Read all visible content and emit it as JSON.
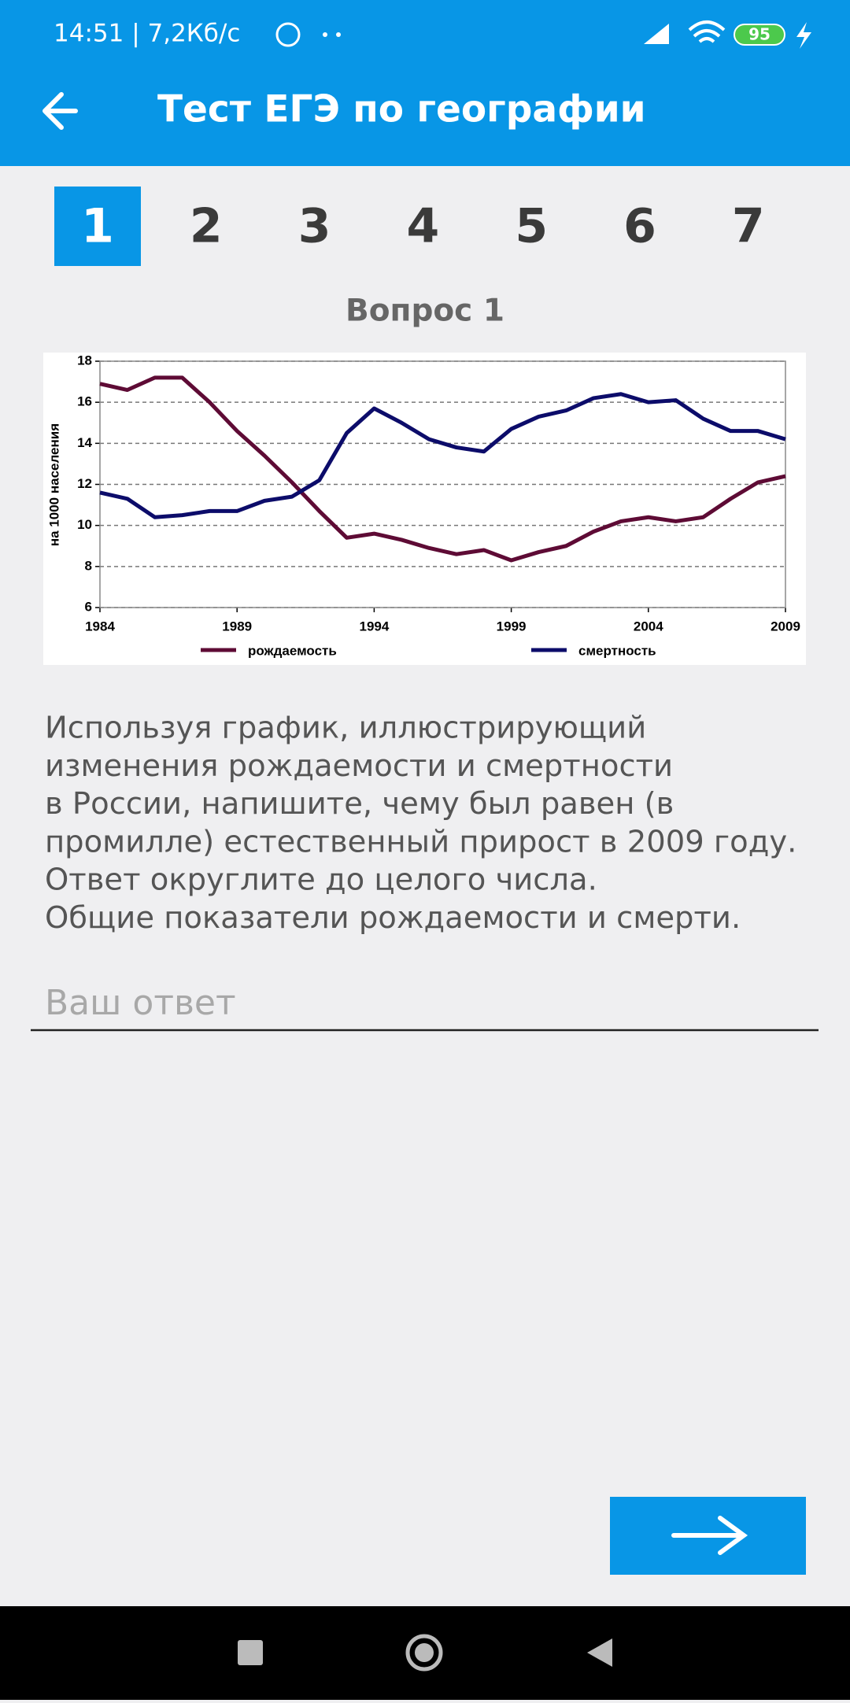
{
  "status": {
    "time": "14:51 | 7,2Кб/с",
    "battery": "95"
  },
  "header": {
    "title": "Тест ЕГЭ по географии"
  },
  "tabs": [
    "1",
    "2",
    "3",
    "4",
    "5",
    "6",
    "7"
  ],
  "question": {
    "heading": "Вопрос 1",
    "chart": {
      "type": "line",
      "ylabel": "на 1000 населения",
      "x": [
        1984,
        1985,
        1986,
        1987,
        1988,
        1989,
        1990,
        1991,
        1992,
        1993,
        1994,
        1995,
        1996,
        1997,
        1998,
        1999,
        2000,
        2001,
        2002,
        2003,
        2004,
        2005,
        2006,
        2007,
        2008,
        2009
      ],
      "series": [
        {
          "name": "рождаемость",
          "color": "#5e0b35",
          "values": [
            16.9,
            16.6,
            17.2,
            17.2,
            16.0,
            14.6,
            13.4,
            12.1,
            10.7,
            9.4,
            9.6,
            9.3,
            8.9,
            8.6,
            8.8,
            8.3,
            8.7,
            9.0,
            9.7,
            10.2,
            10.4,
            10.2,
            10.4,
            11.3,
            12.1,
            12.4
          ]
        },
        {
          "name": "смертность",
          "color": "#0c0c6a",
          "values": [
            11.6,
            11.3,
            10.4,
            10.5,
            10.7,
            10.7,
            11.2,
            11.4,
            12.2,
            14.5,
            15.7,
            15.0,
            14.2,
            13.8,
            13.6,
            14.7,
            15.3,
            15.6,
            16.2,
            16.4,
            16.0,
            16.1,
            15.2,
            14.6,
            14.6,
            14.2
          ]
        }
      ],
      "xlim": [
        1984,
        2009
      ],
      "xticks": [
        1984,
        1989,
        1994,
        1999,
        2004,
        2009
      ],
      "ylim": [
        6,
        18
      ],
      "yticks": [
        6,
        8,
        10,
        12,
        14,
        16,
        18
      ],
      "grid": true
    },
    "text_lines": [
      "Используя график, иллюстрирующий",
      "изменения рождаемости и смертности",
      "в России, напишите, чему был равен (в",
      "промилле) естественный прирост в 2009 году.",
      "Ответ округлите до целого числа.",
      "Общие показатели рождаемости и смерти."
    ],
    "answer_placeholder": "Ваш ответ"
  }
}
